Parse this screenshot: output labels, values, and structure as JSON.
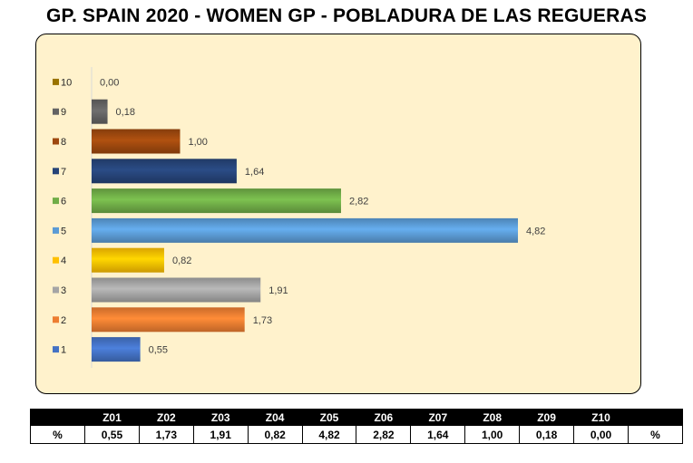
{
  "title": "GP. SPAIN 2020 - WOMEN GP - POBLADURA DE LAS REGUERAS",
  "chart_data": {
    "type": "bar",
    "orientation": "horizontal",
    "categories": [
      "1",
      "2",
      "3",
      "4",
      "5",
      "6",
      "7",
      "8",
      "9",
      "10"
    ],
    "values": [
      0.55,
      1.73,
      1.91,
      0.82,
      4.82,
      2.82,
      1.64,
      1.0,
      0.18,
      0.0
    ],
    "value_labels": [
      "0,55",
      "1,73",
      "1,91",
      "0,82",
      "4,82",
      "2,82",
      "1,64",
      "1,00",
      "0,18",
      "0,00"
    ],
    "colors": [
      "#4472c4",
      "#ed7d31",
      "#a5a5a5",
      "#ffc000",
      "#5b9bd5",
      "#70ad47",
      "#264478",
      "#9e480e",
      "#636363",
      "#997300"
    ],
    "xlim": [
      0,
      4.82
    ],
    "legend": "left",
    "grid": false
  },
  "table": {
    "corner": "",
    "zones": [
      "Z01",
      "Z02",
      "Z03",
      "Z04",
      "Z05",
      "Z06",
      "Z07",
      "Z08",
      "Z09",
      "Z10"
    ],
    "row_label": "%",
    "values": [
      "0,55",
      "1,73",
      "1,91",
      "0,82",
      "4,82",
      "2,82",
      "1,64",
      "1,00",
      "0,18",
      "0,00"
    ],
    "row_end_label": "%",
    "end_header": ""
  }
}
